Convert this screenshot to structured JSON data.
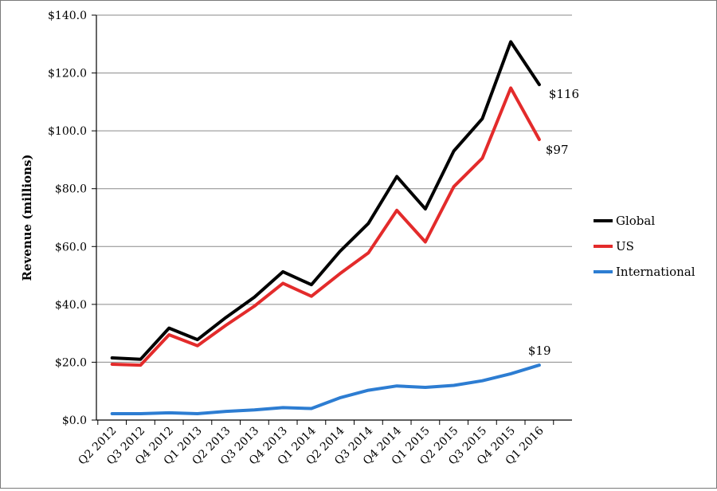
{
  "chart_data": {
    "type": "line",
    "title": "",
    "xlabel": "",
    "ylabel": "Revenue (millions)",
    "ylim": [
      0,
      140
    ],
    "yticks": [
      "$0.0",
      "$20.0",
      "$40.0",
      "$60.0",
      "$80.0",
      "$100.0",
      "$120.0",
      "$140.0"
    ],
    "grid": true,
    "legend_position": "right",
    "categories": [
      "Q2 2012",
      "Q3 2012",
      "Q4 2012",
      "Q1 2013",
      "Q2 2013",
      "Q3 2013",
      "Q4 2013",
      "Q1 2014",
      "Q2 2014",
      "Q3 2014",
      "Q4 2014",
      "Q1 2015",
      "Q2 2015",
      "Q3 2015",
      "Q4 2015",
      "Q1 2016"
    ],
    "series": [
      {
        "name": "Global",
        "color": "#000000",
        "values": [
          21.5,
          21.0,
          31.8,
          27.8,
          35.5,
          42.5,
          51.3,
          46.8,
          58.3,
          68.0,
          84.2,
          73.0,
          93.0,
          104.2,
          130.8,
          116.0
        ],
        "end_label": "$116"
      },
      {
        "name": "US",
        "color": "#e32b2b",
        "values": [
          19.3,
          19.0,
          29.5,
          25.7,
          32.8,
          39.4,
          47.3,
          42.8,
          50.6,
          57.8,
          72.5,
          61.6,
          80.7,
          90.5,
          114.8,
          97.0
        ],
        "end_label": "$97"
      },
      {
        "name": "International",
        "color": "#2d7dd2",
        "values": [
          2.2,
          2.2,
          2.5,
          2.2,
          3.0,
          3.5,
          4.3,
          4.0,
          7.7,
          10.3,
          11.8,
          11.3,
          12.0,
          13.6,
          16.0,
          19.0
        ],
        "end_label": "$19"
      }
    ]
  }
}
